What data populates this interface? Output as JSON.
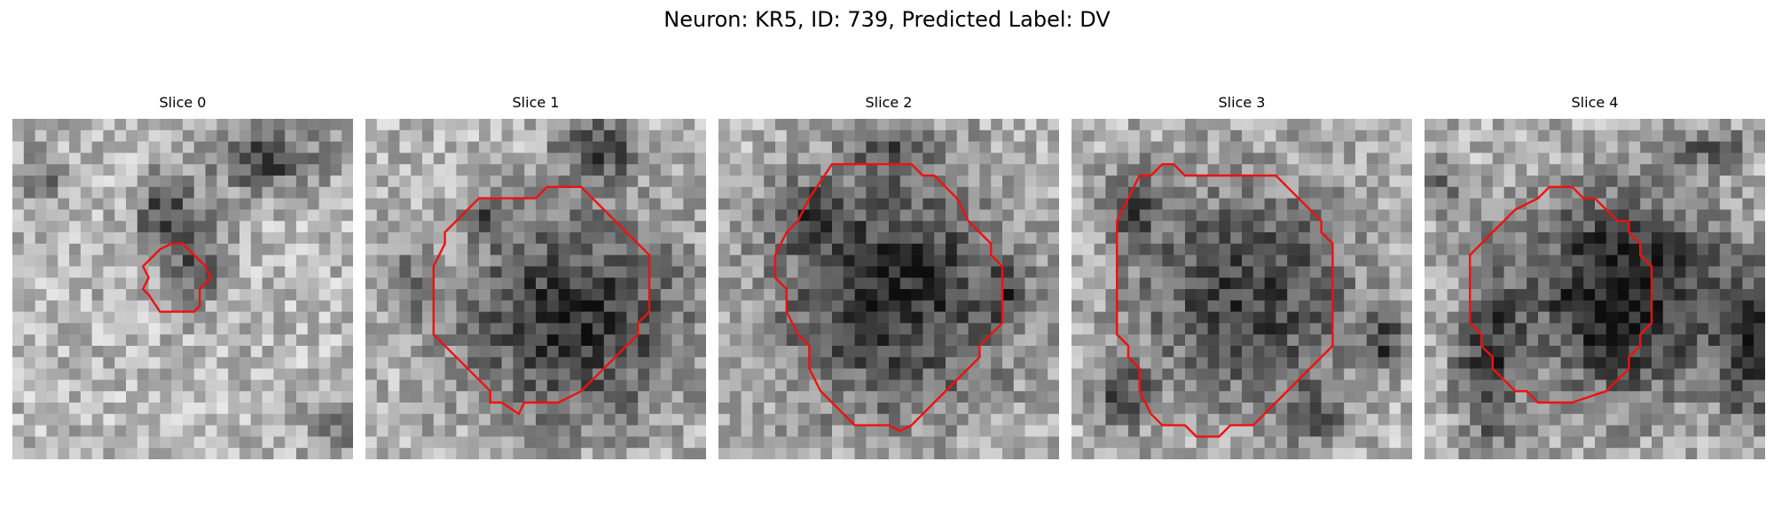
{
  "figure": {
    "title": "Neuron: KR5, ID: 739, Predicted Label: DV"
  },
  "panels": [
    {
      "title": "Slice 0"
    },
    {
      "title": "Slice 1"
    },
    {
      "title": "Slice 2"
    },
    {
      "title": "Slice 3"
    },
    {
      "title": "Slice 4"
    }
  ],
  "colors": {
    "contour": "#ee1111",
    "background": "#ffffff"
  }
}
